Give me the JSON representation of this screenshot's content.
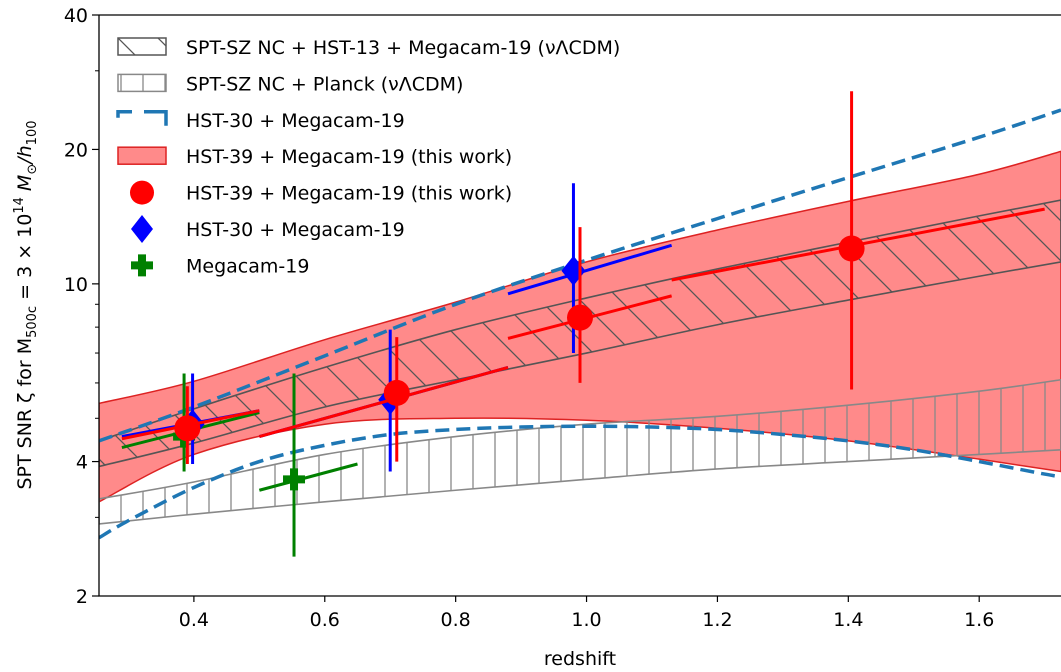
{
  "chart_data": {
    "type": "scatter",
    "xlabel": "redshift",
    "ylabel_parts": {
      "pre": "SPT SNR ζ for M",
      "sub1": "500c",
      "mid": " = 3 × 10",
      "sup": "14",
      "mid2": " M",
      "sub2": "⊙",
      "slash": "/h",
      "sub3": "100"
    },
    "xlim": [
      0.255,
      1.725
    ],
    "ylim": [
      2,
      40
    ],
    "yscale": "log",
    "xticks": [
      0.4,
      0.6,
      0.8,
      1.0,
      1.2,
      1.4,
      1.6
    ],
    "xtick_labels": [
      "0.4",
      "0.6",
      "0.8",
      "1.0",
      "1.2",
      "1.4",
      "1.6"
    ],
    "yticks": [
      2,
      4,
      10,
      20,
      40
    ],
    "ytick_labels": [
      "2",
      "4",
      "10",
      "20",
      "40"
    ],
    "legend_position": "top-left",
    "legend": [
      {
        "label": "SPT-SZ NC + HST-13 + Megacam-19 (νΛCDM)",
        "symbol": "hatch-diag",
        "color": "#555555"
      },
      {
        "label": "SPT-SZ NC + Planck (νΛCDM)",
        "symbol": "hatch-vert",
        "color": "#888888"
      },
      {
        "label": "HST-30 + Megacam-19",
        "symbol": "dashed",
        "color": "#1f77b4"
      },
      {
        "label": "HST-39 + Megacam-19 (this work)",
        "symbol": "filled-band",
        "color": "#ff8a8a"
      },
      {
        "label": "HST-39 + Megacam-19 (this work)",
        "symbol": "circle",
        "color": "#ff0000"
      },
      {
        "label": "HST-30 + Megacam-19",
        "symbol": "diamond",
        "color": "#0000ff"
      },
      {
        "label": "Megacam-19",
        "symbol": "plus",
        "color": "#008000"
      }
    ],
    "bands": [
      {
        "name": "HST-39 + Megacam-19 (this work)",
        "fill": "#ff8a8a",
        "edge": "#dd2222",
        "x": [
          0.255,
          0.4,
          0.6,
          0.8,
          1.0,
          1.2,
          1.4,
          1.6,
          1.725
        ],
        "lower": [
          3.25,
          4.15,
          4.85,
          5.0,
          4.95,
          4.75,
          4.45,
          4.05,
          3.8
        ],
        "upper": [
          5.4,
          6.05,
          7.5,
          9.1,
          11.2,
          13.2,
          15.3,
          17.6,
          19.8
        ]
      },
      {
        "name": "SPT-SZ NC + HST-13 + Megacam-19 (νΛCDM)",
        "hatch": "diag",
        "edge": "#555555",
        "x": [
          0.255,
          0.4,
          0.6,
          0.8,
          1.0,
          1.2,
          1.4,
          1.6,
          1.725
        ],
        "lower": [
          3.9,
          4.4,
          5.3,
          6.1,
          7.0,
          8.1,
          9.2,
          10.4,
          11.2
        ],
        "upper": [
          4.45,
          5.25,
          6.5,
          7.9,
          9.3,
          10.8,
          12.4,
          14.2,
          15.4
        ]
      },
      {
        "name": "SPT-SZ NC + Planck (νΛCDM)",
        "hatch": "vert",
        "edge": "#888888",
        "x": [
          0.255,
          0.4,
          0.6,
          0.8,
          1.0,
          1.2,
          1.4,
          1.6,
          1.725
        ],
        "lower": [
          2.9,
          3.05,
          3.25,
          3.45,
          3.65,
          3.85,
          4.0,
          4.15,
          4.25
        ],
        "upper": [
          3.3,
          3.6,
          4.15,
          4.55,
          4.85,
          5.05,
          5.35,
          5.75,
          6.1
        ]
      }
    ],
    "dashed_lines": [
      {
        "name": "HST-30 + Megacam-19 upper",
        "color": "#1f77b4",
        "x": [
          0.255,
          0.4,
          0.6,
          0.8,
          1.0,
          1.2,
          1.4,
          1.6,
          1.725
        ],
        "y": [
          4.45,
          5.3,
          6.9,
          9.0,
          11.3,
          14.0,
          17.3,
          21.3,
          24.5
        ]
      },
      {
        "name": "HST-30 + Megacam-19 lower",
        "color": "#1f77b4",
        "x": [
          0.255,
          0.3,
          0.4,
          0.5,
          0.6,
          0.7,
          0.8,
          0.9,
          1.0,
          1.1,
          1.2,
          1.3,
          1.4,
          1.5,
          1.6,
          1.7,
          1.725
        ],
        "y": [
          2.7,
          2.95,
          3.5,
          4.0,
          4.35,
          4.6,
          4.72,
          4.78,
          4.8,
          4.78,
          4.72,
          4.6,
          4.45,
          4.25,
          4.0,
          3.75,
          3.7
        ]
      }
    ],
    "series": [
      {
        "name": "HST-39 + Megacam-19 (this work)",
        "marker": "circle",
        "color": "#ff0000",
        "points": [
          {
            "x": 0.39,
            "y": 4.75,
            "xerr": [
              0.29,
              0.5
            ],
            "xy": [
              4.5,
              5.2
            ],
            "yerr": [
              3.95,
              5.9
            ]
          },
          {
            "x": 0.71,
            "y": 5.7,
            "xerr": [
              0.5,
              0.88
            ],
            "xy": [
              4.55,
              6.5
            ],
            "yerr": [
              4.0,
              7.6
            ]
          },
          {
            "x": 0.99,
            "y": 8.4,
            "xerr": [
              0.88,
              1.13
            ],
            "xy": [
              7.55,
              9.4
            ],
            "yerr": [
              6.0,
              13.4
            ]
          },
          {
            "x": 1.405,
            "y": 12.0,
            "xerr": [
              1.13,
              1.7
            ],
            "xy": [
              10.2,
              14.7
            ],
            "yerr": [
              5.8,
              27.0
            ]
          }
        ]
      },
      {
        "name": "HST-30 + Megacam-19",
        "marker": "diamond",
        "color": "#0000ff",
        "points": [
          {
            "x": 0.398,
            "y": 4.85,
            "xerr": [
              0.29,
              0.5
            ],
            "xy": [
              4.55,
              5.2
            ],
            "yerr": [
              3.95,
              6.3
            ]
          },
          {
            "x": 0.7,
            "y": 5.5,
            "xerr": [
              0.5,
              0.88
            ],
            "xy": [
              4.55,
              6.5
            ],
            "yerr": [
              3.8,
              7.9
            ]
          },
          {
            "x": 0.98,
            "y": 10.7,
            "xerr": [
              0.88,
              1.13
            ],
            "xy": [
              9.5,
              12.2
            ],
            "yerr": [
              7.0,
              16.8
            ]
          }
        ]
      },
      {
        "name": "Megacam-19",
        "marker": "plus",
        "color": "#008000",
        "points": [
          {
            "x": 0.385,
            "y": 4.55,
            "xerr": [
              0.29,
              0.5
            ],
            "xy": [
              4.3,
              5.15
            ],
            "yerr": [
              3.8,
              6.3
            ]
          },
          {
            "x": 0.553,
            "y": 3.65,
            "xerr": [
              0.5,
              0.65
            ],
            "xy": [
              3.45,
              3.95
            ],
            "yerr": [
              2.45,
              6.3
            ]
          }
        ]
      }
    ]
  }
}
